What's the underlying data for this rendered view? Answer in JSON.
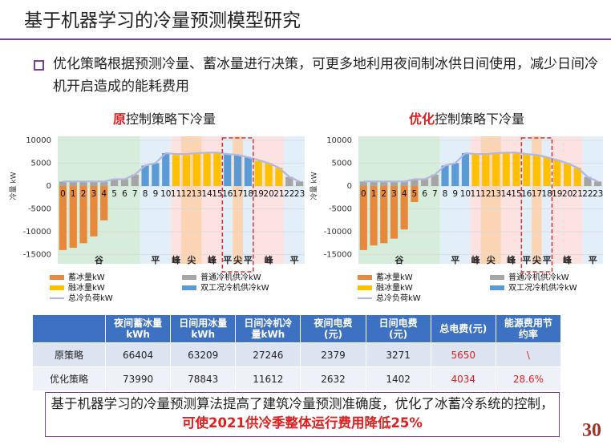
{
  "header": {
    "title": "基于机器学习的冷量预测模型研究"
  },
  "bullet": "优化策略根据预测冷量、蓄冰量进行决策，可更多地利用夜间制冰供日间使用，减少日间冷机开启造成的能耗费用",
  "chart_data": [
    {
      "type": "bar",
      "title_highlight": "原",
      "title": "控制策略下冷量",
      "y_label": "冷量 kW",
      "categories": [
        "0",
        "1",
        "2",
        "3",
        "4",
        "5",
        "6",
        "7",
        "8",
        "9",
        "10",
        "11",
        "12",
        "13",
        "14",
        "15",
        "16",
        "17",
        "18",
        "19",
        "20",
        "21",
        "22",
        "23"
      ],
      "ylim": [
        -17000,
        10000
      ],
      "yticks": [
        10000,
        5000,
        0,
        -5000,
        -10000,
        -15000
      ],
      "grid": true,
      "periods": [
        {
          "label": "谷",
          "from": 0,
          "to": 7,
          "color": "#d6eddb"
        },
        {
          "label": "平",
          "from": 8,
          "to": 10,
          "color": "#e2eef8"
        },
        {
          "label": "峰",
          "from": 11,
          "to": 11,
          "color": "#fde2e2"
        },
        {
          "label": "尖",
          "from": 12,
          "to": 13,
          "color": "#fbd5b3"
        },
        {
          "label": "峰",
          "from": 14,
          "to": 15,
          "color": "#fde2e2"
        },
        {
          "label": "平",
          "from": 16,
          "to": 16,
          "color": "#e2eef8"
        },
        {
          "label": "尖",
          "from": 17,
          "to": 17,
          "color": "#fbd5b3"
        },
        {
          "label": "平",
          "from": 18,
          "to": 18,
          "color": "#e2eef8"
        },
        {
          "label": "峰",
          "from": 19,
          "to": 21,
          "color": "#fde2e2"
        },
        {
          "label": "平",
          "from": 22,
          "to": 23,
          "color": "#e2eef8"
        }
      ],
      "highlight": {
        "from": 16,
        "to": 18,
        "color": "#d9302c"
      },
      "series": [
        {
          "name": "蓄冰量kW",
          "type": "bar",
          "color": "#e8883a",
          "values": [
            -14000,
            -13500,
            -12500,
            -11000,
            -7500,
            null,
            null,
            null,
            null,
            null,
            null,
            null,
            null,
            null,
            null,
            null,
            null,
            null,
            null,
            null,
            null,
            null,
            null,
            null
          ]
        },
        {
          "name": "普通冷机供冷kW",
          "type": "bar",
          "color": "#a5a5a5",
          "values": [
            1000,
            1000,
            1000,
            1000,
            1000,
            1500,
            1500,
            2500,
            null,
            null,
            null,
            null,
            null,
            null,
            null,
            null,
            null,
            null,
            null,
            null,
            null,
            null,
            2000,
            1000
          ]
        },
        {
          "name": "融冰量kW",
          "type": "bar",
          "color": "#ffc000",
          "values": [
            null,
            null,
            null,
            null,
            null,
            null,
            null,
            null,
            null,
            null,
            null,
            6800,
            6800,
            7000,
            7200,
            7200,
            null,
            null,
            null,
            5500,
            5000,
            4000,
            null,
            null
          ]
        },
        {
          "name": "双工况冷机供冷kW",
          "type": "bar",
          "color": "#5b9bd5",
          "values": [
            null,
            null,
            null,
            null,
            null,
            null,
            null,
            null,
            4500,
            5000,
            7200,
            null,
            null,
            null,
            null,
            null,
            7000,
            6800,
            6300,
            null,
            null,
            null,
            null,
            null
          ]
        },
        {
          "name": "总冷负荷kW",
          "type": "line",
          "color": "#b4b8e0",
          "values": [
            1000,
            1000,
            1000,
            1000,
            1000,
            1500,
            1500,
            2500,
            4500,
            5000,
            7200,
            7000,
            7000,
            7200,
            7300,
            7300,
            7000,
            6800,
            6300,
            5700,
            5000,
            4000,
            2000,
            1000
          ]
        }
      ]
    },
    {
      "type": "bar",
      "title_highlight": "优化",
      "title": "控制策略下冷量",
      "y_label": "冷量 kW",
      "categories": [
        "0",
        "1",
        "2",
        "3",
        "4",
        "5",
        "6",
        "7",
        "8",
        "9",
        "10",
        "11",
        "12",
        "13",
        "14",
        "15",
        "16",
        "17",
        "18",
        "19",
        "20",
        "21",
        "22",
        "23"
      ],
      "ylim": [
        -17000,
        10000
      ],
      "yticks": [
        10000,
        5000,
        0,
        -5000,
        -10000,
        -15000
      ],
      "grid": true,
      "periods": [
        {
          "label": "谷",
          "from": 0,
          "to": 7,
          "color": "#d6eddb"
        },
        {
          "label": "平",
          "from": 8,
          "to": 10,
          "color": "#e2eef8"
        },
        {
          "label": "峰",
          "from": 11,
          "to": 11,
          "color": "#fde2e2"
        },
        {
          "label": "尖",
          "from": 12,
          "to": 13,
          "color": "#fbd5b3"
        },
        {
          "label": "峰",
          "from": 14,
          "to": 15,
          "color": "#fde2e2"
        },
        {
          "label": "平",
          "from": 16,
          "to": 16,
          "color": "#e2eef8"
        },
        {
          "label": "尖",
          "from": 17,
          "to": 17,
          "color": "#fbd5b3"
        },
        {
          "label": "平",
          "from": 18,
          "to": 18,
          "color": "#e2eef8"
        },
        {
          "label": "峰",
          "from": 19,
          "to": 21,
          "color": "#fde2e2"
        },
        {
          "label": "平",
          "from": 22,
          "to": 23,
          "color": "#e2eef8"
        }
      ],
      "highlight": {
        "from": 16,
        "to": 18,
        "color": "#d9302c"
      },
      "series": [
        {
          "name": "蓄冰量kW",
          "type": "bar",
          "color": "#e8883a",
          "values": [
            -14000,
            -13000,
            -12500,
            -11500,
            -9500,
            -3500,
            null,
            null,
            null,
            null,
            null,
            null,
            null,
            null,
            null,
            null,
            null,
            null,
            null,
            null,
            null,
            null,
            null,
            null
          ]
        },
        {
          "name": "普通冷机供冷kW",
          "type": "bar",
          "color": "#a5a5a5",
          "values": [
            1000,
            1000,
            1000,
            1000,
            1000,
            1500,
            1500,
            2500,
            null,
            null,
            null,
            null,
            null,
            null,
            null,
            null,
            null,
            null,
            null,
            null,
            null,
            null,
            2000,
            1000
          ]
        },
        {
          "name": "融冰量kW",
          "type": "bar",
          "color": "#ffc000",
          "values": [
            null,
            null,
            null,
            null,
            null,
            null,
            null,
            null,
            null,
            null,
            null,
            7000,
            7000,
            7200,
            7300,
            7300,
            7000,
            6800,
            6300,
            5700,
            5000,
            4000,
            null,
            null
          ]
        },
        {
          "name": "双工况冷机供冷kW",
          "type": "bar",
          "color": "#5b9bd5",
          "values": [
            null,
            null,
            null,
            null,
            null,
            null,
            null,
            null,
            4500,
            5000,
            7200,
            null,
            null,
            null,
            null,
            null,
            null,
            null,
            null,
            null,
            null,
            null,
            null,
            null
          ]
        },
        {
          "name": "总冷负荷kW",
          "type": "line",
          "color": "#b4b8e0",
          "values": [
            1000,
            1000,
            1000,
            1000,
            1000,
            1500,
            1500,
            2500,
            4500,
            5000,
            7200,
            7000,
            7000,
            7200,
            7300,
            7300,
            7000,
            6800,
            6300,
            5700,
            5000,
            4000,
            2000,
            1000
          ]
        }
      ]
    }
  ],
  "table": {
    "header": [
      "",
      "夜间蓄冰量kWh",
      "日间用冰量kWh",
      "日间冷机冷量kWh",
      "夜间电费(元)",
      "日间电费(元)",
      "总电费(元)",
      "能源费用节约率"
    ],
    "rows": [
      [
        "原策略",
        "66404",
        "63209",
        "27246",
        "2379",
        "3271",
        "5650",
        "\\"
      ],
      [
        "优化策略",
        "73990",
        "78843",
        "11612",
        "2632",
        "1402",
        "4034",
        "28.6%"
      ]
    ]
  },
  "conclusion": {
    "text": "基于机器学习的冷量预测算法提高了建筑冷量预测准确度，优化了冰蓄冷系统的控制，",
    "emphasis": "可使2021供冷季整体运行费用降低25%"
  },
  "page_number": "30"
}
